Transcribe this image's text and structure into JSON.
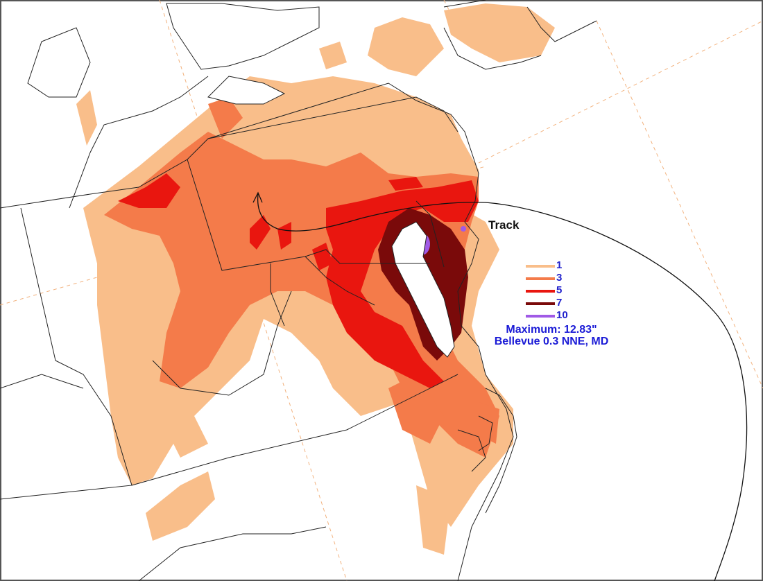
{
  "map": {
    "track_label": "Track",
    "legend": {
      "items": [
        {
          "value": "1",
          "color": "#f9be8a"
        },
        {
          "value": "3",
          "color": "#f47b4a"
        },
        {
          "value": "5",
          "color": "#e9160f"
        },
        {
          "value": "7",
          "color": "#7a0a0a"
        },
        {
          "value": "10",
          "color": "#a05ae6"
        }
      ]
    },
    "maximum": {
      "line1": "Maximum:  12.83\"",
      "line2": "Bellevue 0.3 NNE, MD",
      "color": "#1a1ad6"
    },
    "colors": {
      "land": "#ffffff",
      "boundary": "#222222",
      "graticule": "#f2b27e"
    }
  }
}
